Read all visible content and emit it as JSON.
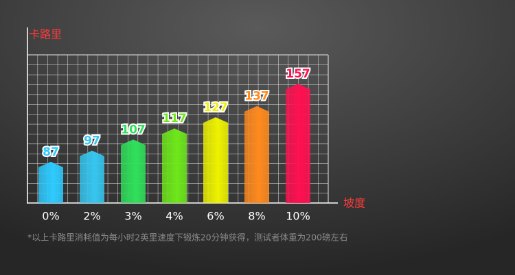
{
  "chart_data": {
    "type": "bar",
    "y_label": "卡路里",
    "x_label": "坡度",
    "note": "*以上卡路里消耗值为每小时2英里速度下锻炼20分钟获得，测试者体重为200磅左右",
    "categories": [
      "0%",
      "2%",
      "3%",
      "4%",
      "6%",
      "8%",
      "10%"
    ],
    "values": [
      87,
      97,
      107,
      117,
      127,
      137,
      157
    ],
    "colors": [
      "#2ecbff",
      "#36c6f0",
      "#2fe05a",
      "#6ee81a",
      "#eef200",
      "#ff8a1e",
      "#ff1050"
    ],
    "ylim": [
      50,
      183
    ],
    "grid": true
  }
}
